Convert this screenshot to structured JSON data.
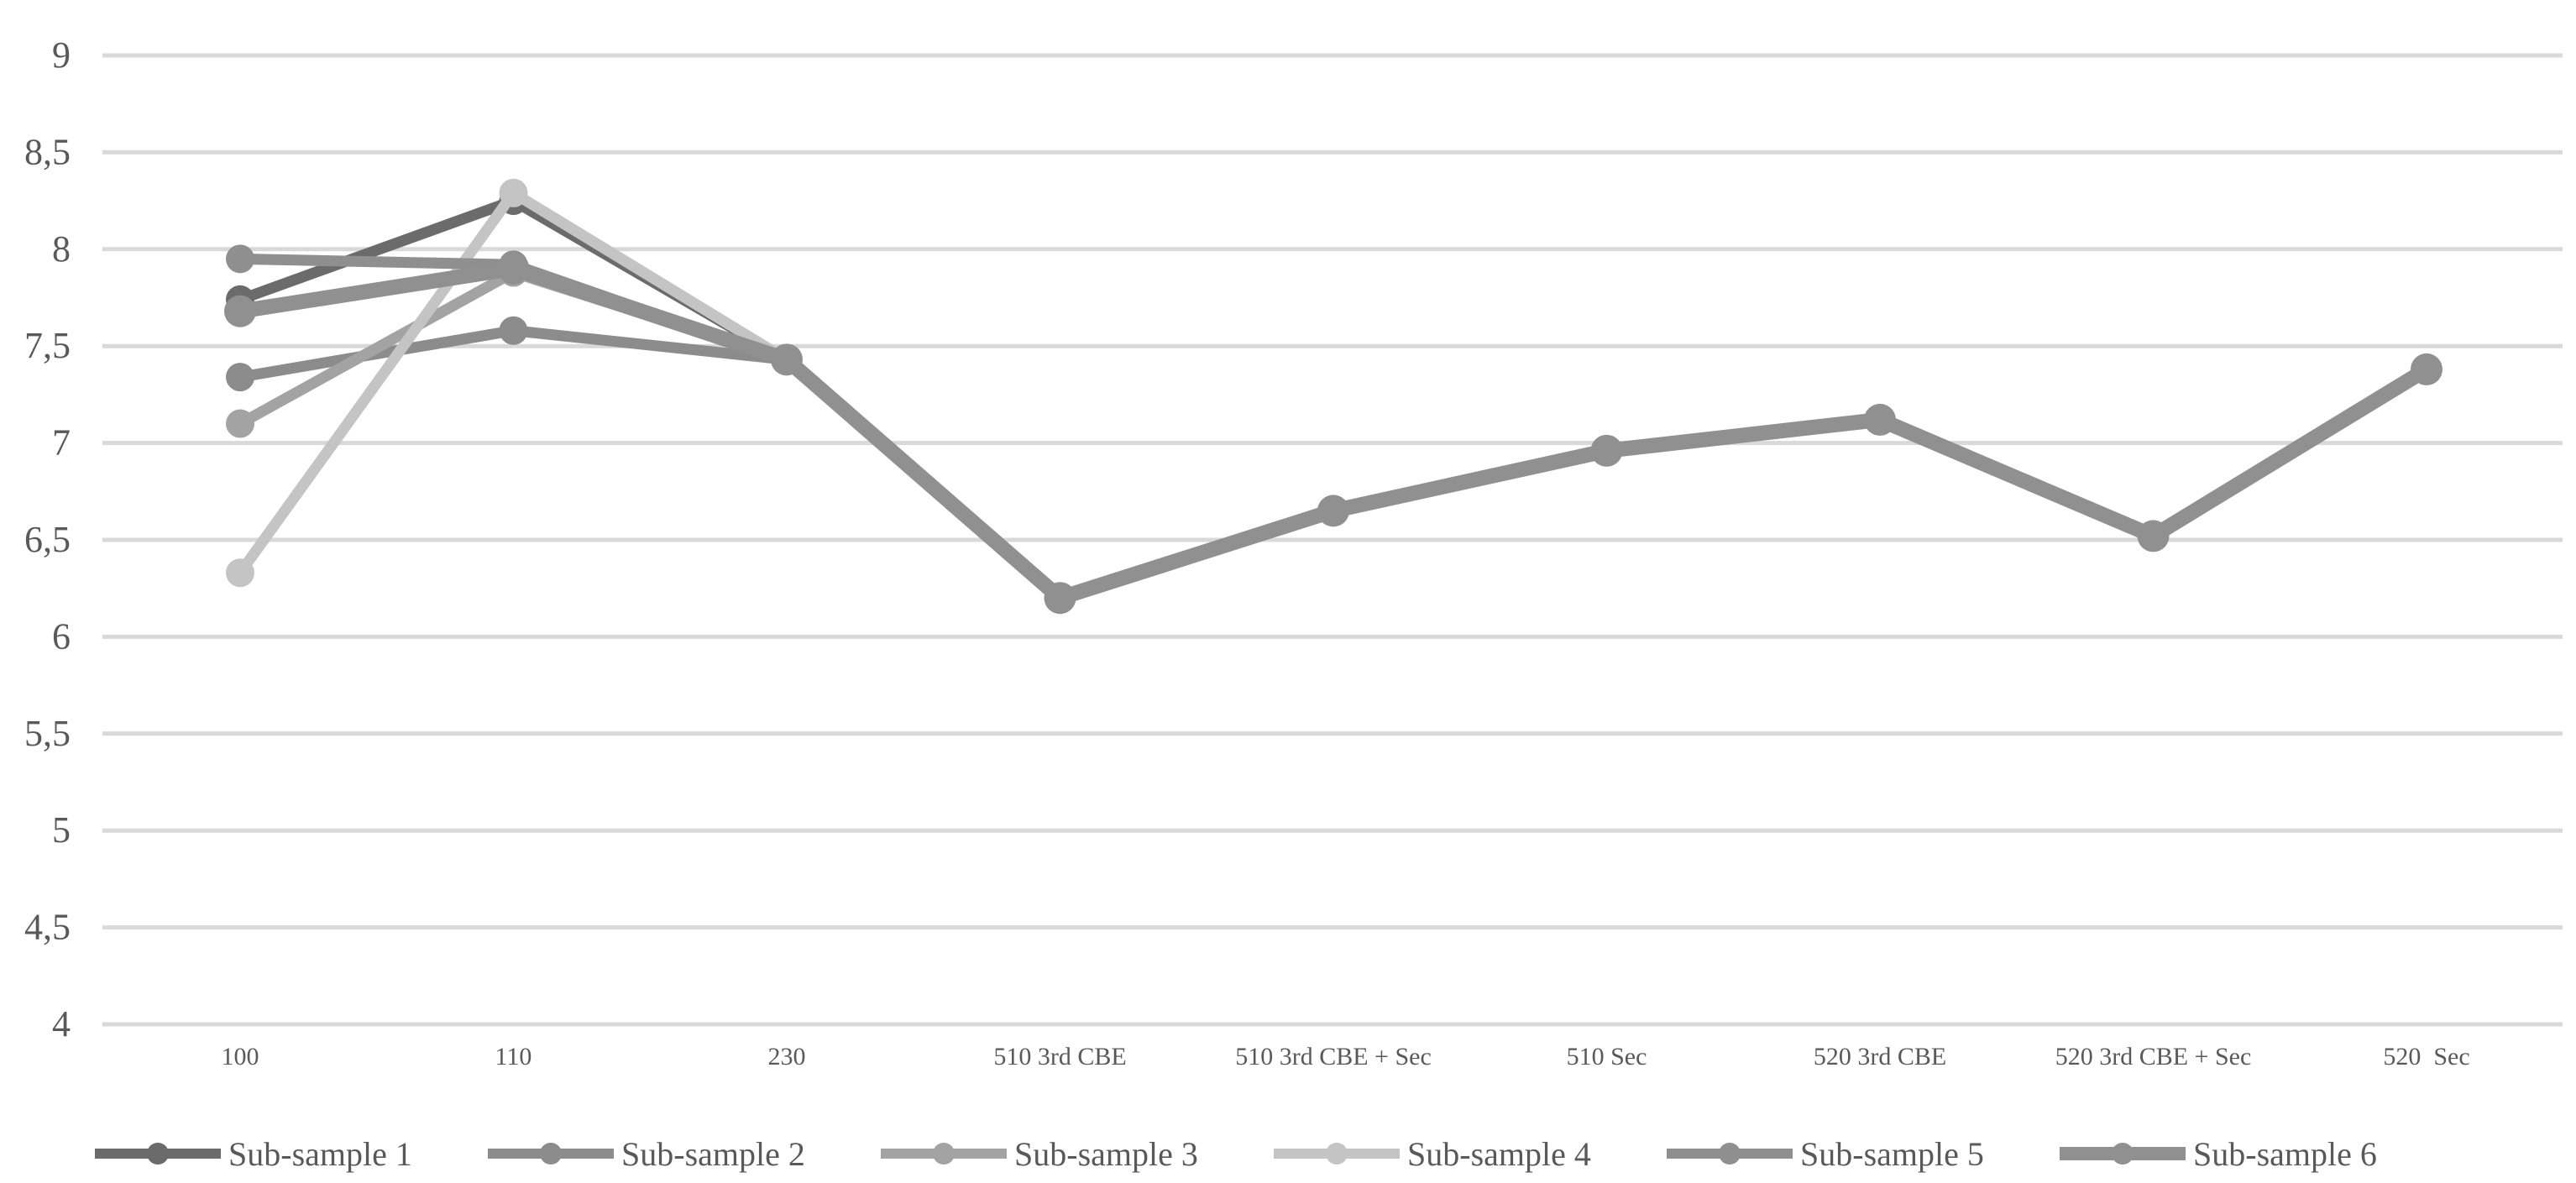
{
  "chart_data": {
    "type": "line",
    "title": "",
    "xlabel": "",
    "ylabel": "",
    "categories": [
      "100",
      "110",
      "230",
      "510 3rd CBE",
      "510 3rd CBE + Sec",
      "510 Sec",
      "520 3rd CBE",
      "520 3rd CBE + Sec",
      "520  Sec"
    ],
    "ylim": [
      4,
      9
    ],
    "y_ticks": [
      "9",
      "8,5",
      "8",
      "7,5",
      "7",
      "6,5",
      "6",
      "5,5",
      "5",
      "4,5",
      "4"
    ],
    "grid": true,
    "legend_position": "bottom",
    "series": [
      {
        "name": "Sub-sample 1",
        "color": "#6b6b6b",
        "values": [
          7.74,
          8.25,
          7.43,
          null,
          null,
          null,
          null,
          null,
          null
        ]
      },
      {
        "name": "Sub-sample 2",
        "color": "#8c8c8c",
        "values": [
          7.34,
          7.58,
          7.43,
          null,
          null,
          null,
          null,
          null,
          null
        ]
      },
      {
        "name": "Sub-sample 3",
        "color": "#a3a3a3",
        "values": [
          7.1,
          7.88,
          7.43,
          null,
          null,
          null,
          null,
          null,
          null
        ]
      },
      {
        "name": "Sub-sample 4",
        "color": "#c4c4c4",
        "values": [
          6.33,
          8.29,
          7.43,
          null,
          null,
          null,
          null,
          null,
          null
        ]
      },
      {
        "name": "Sub-sample 5",
        "color": "#8f8f8f",
        "values": [
          7.95,
          7.92,
          7.43,
          null,
          null,
          null,
          null,
          null,
          null
        ]
      },
      {
        "name": "Sub-sample 6",
        "color": "#909090",
        "values": [
          7.68,
          7.9,
          7.43,
          6.2,
          6.65,
          6.96,
          7.12,
          6.52,
          7.38
        ]
      }
    ]
  }
}
